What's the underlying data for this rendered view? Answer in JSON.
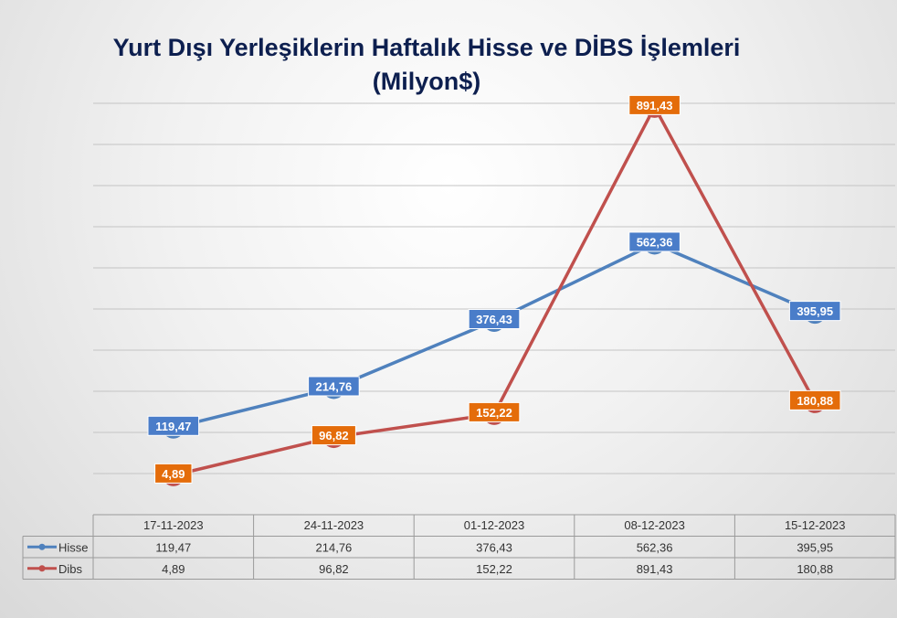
{
  "chart_data": {
    "type": "line",
    "title": "Yurt Dışı Yerleşiklerin Haftalık Hisse ve DİBS İşlemleri",
    "subtitle": "(Milyon$)",
    "categories": [
      "17-11-2023",
      "24-11-2023",
      "01-12-2023",
      "08-12-2023",
      "15-12-2023"
    ],
    "series": [
      {
        "name": "Hisse",
        "values": [
          119.47,
          214.76,
          376.43,
          562.36,
          395.95
        ],
        "labels": [
          "119,47",
          "214,76",
          "376,43",
          "562,36",
          "395,95"
        ],
        "color": "#4f81bd",
        "label_bg": "#4a7dc9"
      },
      {
        "name": "Dibs",
        "values": [
          4.89,
          96.82,
          152.22,
          891.43,
          180.88
        ],
        "labels": [
          "4,89",
          "96,82",
          "152,22",
          "891,43",
          "180,88"
        ],
        "color": "#c0504d",
        "label_bg": "#e46c0a"
      }
    ],
    "ylim": [
      -90,
      900
    ],
    "grid": true,
    "legend": "data-table",
    "data_table": true
  }
}
